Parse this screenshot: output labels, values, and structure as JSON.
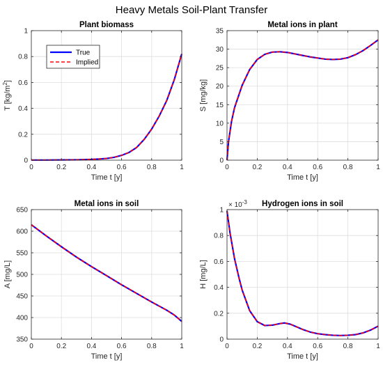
{
  "figure": {
    "title": "Heavy Metals Soil-Plant Transfer"
  },
  "legend": {
    "entries": [
      "True",
      "Implied"
    ]
  },
  "colors": {
    "true_series": "#0000ff",
    "implied_series": "#ff0000"
  },
  "chart_data": [
    {
      "type": "line",
      "title": "Plant biomass",
      "xlabel": "Time t [y]",
      "ylabel": "T [kg/m",
      "ylabel_sup": "2",
      "ylabel_end": "]",
      "xlim": [
        0,
        1
      ],
      "ylim": [
        0,
        1
      ],
      "xticks": [
        0,
        0.2,
        0.4,
        0.6,
        0.8,
        1
      ],
      "xticklabels": [
        "0",
        "0.2",
        "0.4",
        "0.6",
        "0.8",
        "1"
      ],
      "yticks": [
        0,
        0.2,
        0.4,
        0.6,
        0.8,
        1
      ],
      "yticklabels": [
        "0",
        "0.2",
        "0.4",
        "0.6",
        "0.8",
        "1"
      ],
      "grid": true,
      "legend": "top-left",
      "x": [
        0,
        0.1,
        0.2,
        0.3,
        0.4,
        0.45,
        0.5,
        0.55,
        0.6,
        0.65,
        0.7,
        0.75,
        0.8,
        0.85,
        0.9,
        0.95,
        1.0
      ],
      "series": [
        {
          "name": "True",
          "values": [
            0.001,
            0.001,
            0.002,
            0.003,
            0.006,
            0.009,
            0.013,
            0.022,
            0.037,
            0.06,
            0.098,
            0.16,
            0.24,
            0.34,
            0.46,
            0.62,
            0.82
          ]
        },
        {
          "name": "Implied",
          "values": [
            0.001,
            0.001,
            0.002,
            0.003,
            0.006,
            0.009,
            0.013,
            0.022,
            0.037,
            0.06,
            0.098,
            0.16,
            0.24,
            0.34,
            0.46,
            0.62,
            0.82
          ]
        }
      ]
    },
    {
      "type": "line",
      "title": "Metal ions in plant",
      "xlabel": "Time t [y]",
      "ylabel": "S [mg/kg]",
      "xlim": [
        0,
        1
      ],
      "ylim": [
        0,
        35
      ],
      "xticks": [
        0,
        0.2,
        0.4,
        0.6,
        0.8,
        1
      ],
      "xticklabels": [
        "0",
        "0.2",
        "0.4",
        "0.6",
        "0.8",
        "1"
      ],
      "yticks": [
        0,
        5,
        10,
        15,
        20,
        25,
        30,
        35
      ],
      "yticklabels": [
        "0",
        "5",
        "10",
        "15",
        "20",
        "25",
        "30",
        "35"
      ],
      "grid": true,
      "x": [
        0,
        0.01,
        0.03,
        0.05,
        0.08,
        0.1,
        0.15,
        0.2,
        0.25,
        0.3,
        0.35,
        0.4,
        0.45,
        0.5,
        0.55,
        0.6,
        0.65,
        0.7,
        0.75,
        0.8,
        0.85,
        0.9,
        0.95,
        1.0
      ],
      "series": [
        {
          "name": "True",
          "values": [
            0,
            5,
            10.5,
            14.2,
            17.8,
            20.2,
            24.5,
            27.2,
            28.6,
            29.2,
            29.3,
            29.1,
            28.7,
            28.3,
            27.9,
            27.6,
            27.3,
            27.2,
            27.3,
            27.7,
            28.5,
            29.6,
            31.0,
            32.5
          ]
        },
        {
          "name": "Implied",
          "values": [
            0,
            5,
            10.5,
            14.2,
            17.8,
            20.2,
            24.5,
            27.2,
            28.6,
            29.2,
            29.3,
            29.1,
            28.7,
            28.3,
            27.9,
            27.6,
            27.3,
            27.2,
            27.3,
            27.7,
            28.5,
            29.6,
            31.0,
            32.5
          ]
        }
      ]
    },
    {
      "type": "line",
      "title": "Metal ions in soil",
      "xlabel": "Time t [y]",
      "ylabel": "A [mg/L]",
      "xlim": [
        0,
        1
      ],
      "ylim": [
        350,
        650
      ],
      "xticks": [
        0,
        0.2,
        0.4,
        0.6,
        0.8,
        1
      ],
      "xticklabels": [
        "0",
        "0.2",
        "0.4",
        "0.6",
        "0.8",
        "1"
      ],
      "yticks": [
        350,
        400,
        450,
        500,
        550,
        600,
        650
      ],
      "yticklabels": [
        "350",
        "400",
        "450",
        "500",
        "550",
        "600",
        "650"
      ],
      "grid": true,
      "x": [
        0,
        0.1,
        0.2,
        0.3,
        0.4,
        0.5,
        0.6,
        0.7,
        0.8,
        0.9,
        0.95,
        1.0
      ],
      "series": [
        {
          "name": "True",
          "values": [
            615,
            589,
            564,
            540,
            518,
            497,
            476,
            456,
            436,
            417,
            406,
            391
          ]
        },
        {
          "name": "Implied",
          "values": [
            615,
            589,
            564,
            540,
            518,
            497,
            476,
            456,
            436,
            417,
            406,
            391
          ]
        }
      ]
    },
    {
      "type": "line",
      "title": "Hydrogen ions in soil",
      "xlabel": "Time t [y]",
      "ylabel": "H [mg/L]",
      "xlim": [
        0,
        1
      ],
      "ylim": [
        0,
        0.001
      ],
      "xticks": [
        0,
        0.2,
        0.4,
        0.6,
        0.8,
        1
      ],
      "xticklabels": [
        "0",
        "0.2",
        "0.4",
        "0.6",
        "0.8",
        "1"
      ],
      "yticks": [
        0,
        0.0002,
        0.0004,
        0.0006,
        0.0008,
        0.001
      ],
      "yticklabels": [
        "0",
        "0.2",
        "0.4",
        "0.6",
        "0.8",
        "1"
      ],
      "y_exponent_base": "× 10",
      "y_exponent_power": "-3",
      "grid": true,
      "x": [
        0,
        0.02,
        0.05,
        0.08,
        0.1,
        0.15,
        0.2,
        0.25,
        0.3,
        0.35,
        0.38,
        0.42,
        0.45,
        0.5,
        0.55,
        0.6,
        0.65,
        0.7,
        0.75,
        0.8,
        0.85,
        0.9,
        0.95,
        1.0
      ],
      "series": [
        {
          "name": "True",
          "values": [
            0.00099,
            0.00082,
            0.00062,
            0.00047,
            0.00038,
            0.00022,
            0.000135,
            0.000105,
            0.000108,
            0.00012,
            0.000125,
            0.000115,
            0.0001,
            7.5e-05,
            5.5e-05,
            4.2e-05,
            3.5e-05,
            3e-05,
            2.8e-05,
            3e-05,
            3.5e-05,
            4.8e-05,
            7e-05,
            0.0001
          ]
        },
        {
          "name": "Implied",
          "values": [
            0.00099,
            0.00082,
            0.00062,
            0.00047,
            0.00038,
            0.00022,
            0.000135,
            0.000105,
            0.000108,
            0.00012,
            0.000125,
            0.000115,
            0.0001,
            7.5e-05,
            5.5e-05,
            4.2e-05,
            3.5e-05,
            3e-05,
            2.8e-05,
            3e-05,
            3.5e-05,
            4.8e-05,
            7e-05,
            0.0001
          ]
        }
      ]
    }
  ]
}
